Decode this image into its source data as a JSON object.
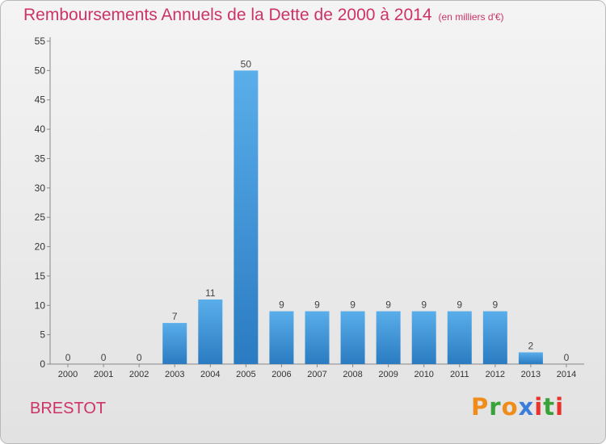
{
  "title": "Remboursements Annuels de la Dette de 2000 à 2014",
  "unit": "(en milliers d'€)",
  "place": "BRESTOT",
  "brand": "Proxiti",
  "brand_colors": [
    "#f08c1a",
    "#3aa23a",
    "#f08c1a",
    "#3b7dd8",
    "#e8322b",
    "#3aa23a",
    "#e8322b"
  ],
  "colors": {
    "bar_light": "#5aaeea",
    "bar_dark": "#2a7bc1",
    "title": "#cc3366"
  },
  "chart_data": {
    "type": "bar",
    "title": "Remboursements Annuels de la Dette de 2000 à 2014",
    "xlabel": "",
    "ylabel": "",
    "categories": [
      "2000",
      "2001",
      "2002",
      "2003",
      "2004",
      "2005",
      "2006",
      "2007",
      "2008",
      "2009",
      "2010",
      "2011",
      "2012",
      "2013",
      "2014"
    ],
    "values": [
      0,
      0,
      0,
      7,
      11,
      50,
      9,
      9,
      9,
      9,
      9,
      9,
      9,
      2,
      0
    ],
    "data_labels": [
      "0",
      "0",
      "0",
      "7",
      "11",
      "50",
      "9",
      "9",
      "9",
      "9",
      "9",
      "9",
      "9",
      "2",
      "0"
    ],
    "ylim": [
      0,
      55
    ],
    "yticks": [
      0,
      5,
      10,
      15,
      20,
      25,
      30,
      35,
      40,
      45,
      50,
      55
    ],
    "grid": false,
    "legend": "none"
  }
}
